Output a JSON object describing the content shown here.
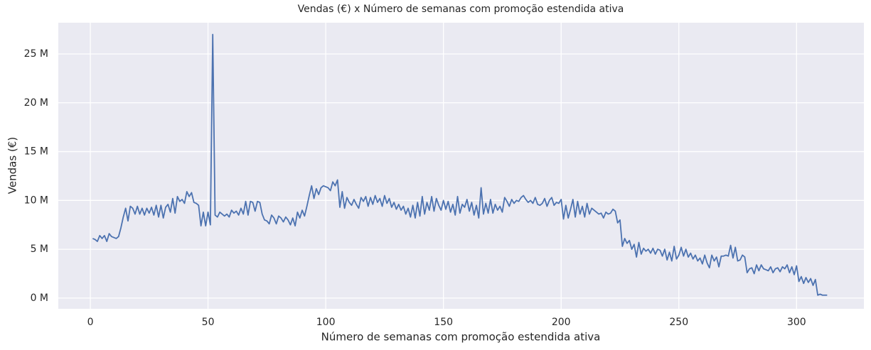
{
  "chart_data": {
    "type": "line",
    "title": "Vendas (€) x Número de semanas com promoção estendida ativa",
    "xlabel": "Número de semanas com promoção estendida ativa",
    "ylabel": "Vendas (€)",
    "color": "#4c72b0",
    "grid": true,
    "xlim": [
      -13.6,
      328.6
    ],
    "xticks": [
      0,
      50,
      100,
      150,
      200,
      250,
      300
    ],
    "ylim": [
      -1.1,
      28.2
    ],
    "yticks": [
      {
        "value": 0,
        "label": "0 M"
      },
      {
        "value": 5,
        "label": "5 M"
      },
      {
        "value": 10,
        "label": "10 M"
      },
      {
        "value": 15,
        "label": "15 M"
      },
      {
        "value": 20,
        "label": "20 M"
      },
      {
        "value": 25,
        "label": "25 M"
      }
    ],
    "x": [
      1,
      2,
      3,
      4,
      5,
      6,
      7,
      8,
      9,
      10,
      11,
      12,
      13,
      14,
      15,
      16,
      17,
      18,
      19,
      20,
      21,
      22,
      23,
      24,
      25,
      26,
      27,
      28,
      29,
      30,
      31,
      32,
      33,
      34,
      35,
      36,
      37,
      38,
      39,
      40,
      41,
      42,
      43,
      44,
      45,
      46,
      47,
      48,
      49,
      50,
      51,
      52,
      53,
      54,
      55,
      56,
      57,
      58,
      59,
      60,
      61,
      62,
      63,
      64,
      65,
      66,
      67,
      68,
      69,
      70,
      71,
      72,
      73,
      74,
      75,
      76,
      77,
      78,
      79,
      80,
      81,
      82,
      83,
      84,
      85,
      86,
      87,
      88,
      89,
      90,
      91,
      92,
      93,
      94,
      95,
      96,
      97,
      98,
      99,
      100,
      101,
      102,
      103,
      104,
      105,
      106,
      107,
      108,
      109,
      110,
      111,
      112,
      113,
      114,
      115,
      116,
      117,
      118,
      119,
      120,
      121,
      122,
      123,
      124,
      125,
      126,
      127,
      128,
      129,
      130,
      131,
      132,
      133,
      134,
      135,
      136,
      137,
      138,
      139,
      140,
      141,
      142,
      143,
      144,
      145,
      146,
      147,
      148,
      149,
      150,
      151,
      152,
      153,
      154,
      155,
      156,
      157,
      158,
      159,
      160,
      161,
      162,
      163,
      164,
      165,
      166,
      167,
      168,
      169,
      170,
      171,
      172,
      173,
      174,
      175,
      176,
      177,
      178,
      179,
      180,
      181,
      182,
      183,
      184,
      185,
      186,
      187,
      188,
      189,
      190,
      191,
      192,
      193,
      194,
      195,
      196,
      197,
      198,
      199,
      200,
      201,
      202,
      203,
      204,
      205,
      206,
      207,
      208,
      209,
      210,
      211,
      212,
      213,
      214,
      215,
      216,
      217,
      218,
      219,
      220,
      221,
      222,
      223,
      224,
      225,
      226,
      227,
      228,
      229,
      230,
      231,
      232,
      233,
      234,
      235,
      236,
      237,
      238,
      239,
      240,
      241,
      242,
      243,
      244,
      245,
      246,
      247,
      248,
      249,
      250,
      251,
      252,
      253,
      254,
      255,
      256,
      257,
      258,
      259,
      260,
      261,
      262,
      263,
      264,
      265,
      266,
      267,
      268,
      269,
      270,
      271,
      272,
      273,
      274,
      275,
      276,
      277,
      278,
      279,
      280,
      281,
      282,
      283,
      284,
      285,
      286,
      287,
      288,
      289,
      290,
      291,
      292,
      293,
      294,
      295,
      296,
      297,
      298,
      299,
      300,
      301,
      302,
      303,
      304,
      305,
      306,
      307,
      308,
      309,
      310,
      311,
      312,
      313
    ],
    "values": [
      6.1,
      6.0,
      5.8,
      6.4,
      6.1,
      6.4,
      5.8,
      6.6,
      6.3,
      6.2,
      6.1,
      6.3,
      7.2,
      8.3,
      9.2,
      7.9,
      9.4,
      9.2,
      8.6,
      9.4,
      8.6,
      9.2,
      8.5,
      9.2,
      8.7,
      9.3,
      8.5,
      9.5,
      8.3,
      9.5,
      8.2,
      9.3,
      9.6,
      8.8,
      10.2,
      8.7,
      10.4,
      9.9,
      10.1,
      9.7,
      10.9,
      10.4,
      10.8,
      9.8,
      9.7,
      9.5,
      7.4,
      8.8,
      7.4,
      8.8,
      7.5,
      27.0,
      8.5,
      8.3,
      8.8,
      8.6,
      8.4,
      8.6,
      8.3,
      9.0,
      8.7,
      8.9,
      8.5,
      9.2,
      8.6,
      9.9,
      8.5,
      9.9,
      9.8,
      8.9,
      9.9,
      9.8,
      8.6,
      8.0,
      7.9,
      7.6,
      8.5,
      8.2,
      7.6,
      8.4,
      8.2,
      7.8,
      8.3,
      8.0,
      7.5,
      8.2,
      7.4,
      8.8,
      8.2,
      9.0,
      8.4,
      9.4,
      10.5,
      11.5,
      10.2,
      11.2,
      10.6,
      11.3,
      11.5,
      11.4,
      11.3,
      11.0,
      11.9,
      11.5,
      12.1,
      9.3,
      10.9,
      9.2,
      10.3,
      9.8,
      9.5,
      10.1,
      9.6,
      9.2,
      10.3,
      9.9,
      10.4,
      9.4,
      10.3,
      9.6,
      10.5,
      9.8,
      10.2,
      9.4,
      10.5,
      9.7,
      10.2,
      9.3,
      9.8,
      9.1,
      9.6,
      9.0,
      9.4,
      8.6,
      9.2,
      8.3,
      9.5,
      8.2,
      9.8,
      8.4,
      10.4,
      8.6,
      9.8,
      9.0,
      10.4,
      8.9,
      10.2,
      9.5,
      9.0,
      10.0,
      9.1,
      9.9,
      8.8,
      9.6,
      8.5,
      10.4,
      8.7,
      9.6,
      9.3,
      10.1,
      8.9,
      9.8,
      8.5,
      9.5,
      8.2,
      11.3,
      8.6,
      9.7,
      8.7,
      10.1,
      8.7,
      9.6,
      9.0,
      9.4,
      8.8,
      10.3,
      9.9,
      9.4,
      10.1,
      9.7,
      10.0,
      9.9,
      10.3,
      10.5,
      10.1,
      9.8,
      10.0,
      9.7,
      10.3,
      9.6,
      9.5,
      9.7,
      10.2,
      9.4,
      10.0,
      10.3,
      9.5,
      9.8,
      9.7,
      10.1,
      8.1,
      9.5,
      8.2,
      9.1,
      10.1,
      8.3,
      9.9,
      8.6,
      9.4,
      8.3,
      9.7,
      8.6,
      9.2,
      9.0,
      8.8,
      8.6,
      8.7,
      8.2,
      8.8,
      8.6,
      8.7,
      9.1,
      8.9,
      7.7,
      8.0,
      5.3,
      6.1,
      5.6,
      5.9,
      5.0,
      5.5,
      4.2,
      5.7,
      4.5,
      5.1,
      4.8,
      5.0,
      4.6,
      5.1,
      4.5,
      5.0,
      4.9,
      4.3,
      5.0,
      3.9,
      4.7,
      3.8,
      5.3,
      4.0,
      4.4,
      5.2,
      4.3,
      5.0,
      4.2,
      4.6,
      4.0,
      4.4,
      3.8,
      4.1,
      3.5,
      4.4,
      3.6,
      3.1,
      4.4,
      3.8,
      4.2,
      3.2,
      4.3,
      4.3,
      4.4,
      4.3,
      5.4,
      4.1,
      5.2,
      3.8,
      3.9,
      4.4,
      4.2,
      2.6,
      3.0,
      3.1,
      2.5,
      3.4,
      2.8,
      3.4,
      3.0,
      2.9,
      2.8,
      3.2,
      2.6,
      3.0,
      3.1,
      2.7,
      3.2,
      3.0,
      3.4,
      2.6,
      3.2,
      2.4,
      3.3,
      1.7,
      2.2,
      1.5,
      2.1,
      1.6,
      2.0,
      1.3,
      1.9,
      0.3,
      0.4,
      0.3,
      0.3,
      0.3
    ]
  }
}
